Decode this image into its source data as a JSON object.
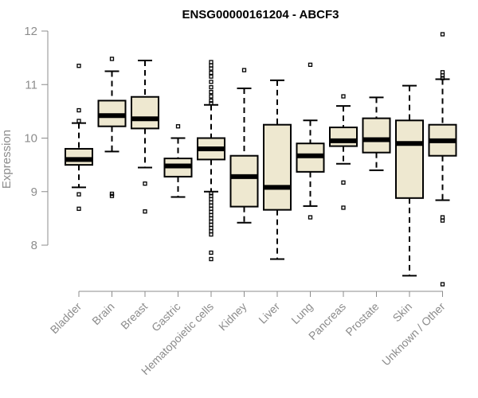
{
  "chart_data": {
    "type": "boxplot",
    "title": "ENSG00000161204 - ABCF3",
    "xlabel": "",
    "ylabel": "Expression",
    "ylim": [
      7.2,
      12
    ],
    "yticks": [
      8,
      9,
      10,
      11,
      12
    ],
    "box_fill": "#eee8d0",
    "categories": [
      "Bladder",
      "Brain",
      "Breast",
      "Gastric",
      "Hematopoietic cells",
      "Kidney",
      "Liver",
      "Lung",
      "Pancreas",
      "Prostate",
      "Skin",
      "Unknown / Other"
    ],
    "boxes": [
      {
        "category": "Bladder",
        "whisker_low": 9.08,
        "q1": 9.5,
        "median": 9.6,
        "q3": 9.8,
        "whisker_high": 10.28,
        "outliers": [
          8.68,
          8.95,
          10.32,
          10.52,
          11.35
        ]
      },
      {
        "category": "Brain",
        "whisker_low": 9.75,
        "q1": 10.22,
        "median": 10.42,
        "q3": 10.7,
        "whisker_high": 11.25,
        "outliers": [
          8.92,
          8.96,
          11.48
        ]
      },
      {
        "category": "Breast",
        "whisker_low": 9.45,
        "q1": 10.18,
        "median": 10.36,
        "q3": 10.77,
        "whisker_high": 11.45,
        "outliers": [
          8.63,
          9.15
        ]
      },
      {
        "category": "Gastric",
        "whisker_low": 8.9,
        "q1": 9.28,
        "median": 9.48,
        "q3": 9.62,
        "whisker_high": 10.0,
        "outliers": [
          10.22
        ]
      },
      {
        "category": "Hematopoietic cells",
        "whisker_low": 9.0,
        "q1": 9.6,
        "median": 9.8,
        "q3": 10.0,
        "whisker_high": 10.62,
        "outliers": [
          7.74,
          7.86,
          8.2,
          8.26,
          8.32,
          8.38,
          8.44,
          8.5,
          8.56,
          8.62,
          8.68,
          8.74,
          8.8,
          8.86,
          8.92,
          8.97,
          10.65,
          10.7,
          10.78,
          10.86,
          10.95,
          11.05,
          11.15,
          11.22,
          11.3,
          11.36,
          11.42
        ]
      },
      {
        "category": "Kidney",
        "whisker_low": 8.42,
        "q1": 8.72,
        "median": 9.28,
        "q3": 9.67,
        "whisker_high": 10.93,
        "outliers": [
          11.27
        ]
      },
      {
        "category": "Liver",
        "whisker_low": 7.74,
        "q1": 8.66,
        "median": 9.08,
        "q3": 10.25,
        "whisker_high": 11.08,
        "outliers": []
      },
      {
        "category": "Lung",
        "whisker_low": 8.73,
        "q1": 9.37,
        "median": 9.67,
        "q3": 9.9,
        "whisker_high": 10.33,
        "outliers": [
          8.52,
          11.37
        ]
      },
      {
        "category": "Pancreas",
        "whisker_low": 9.52,
        "q1": 9.85,
        "median": 9.95,
        "q3": 10.2,
        "whisker_high": 10.6,
        "outliers": [
          8.7,
          9.17,
          10.78
        ]
      },
      {
        "category": "Prostate",
        "whisker_low": 9.4,
        "q1": 9.73,
        "median": 9.97,
        "q3": 10.37,
        "whisker_high": 10.76,
        "outliers": []
      },
      {
        "category": "Skin",
        "whisker_low": 7.43,
        "q1": 8.88,
        "median": 9.9,
        "q3": 10.33,
        "whisker_high": 10.98,
        "outliers": []
      },
      {
        "category": "Unknown / Other",
        "whisker_low": 8.84,
        "q1": 9.67,
        "median": 9.95,
        "q3": 10.25,
        "whisker_high": 11.1,
        "outliers": [
          7.27,
          8.46,
          8.52,
          11.12,
          11.17,
          11.23,
          11.94
        ]
      }
    ]
  }
}
